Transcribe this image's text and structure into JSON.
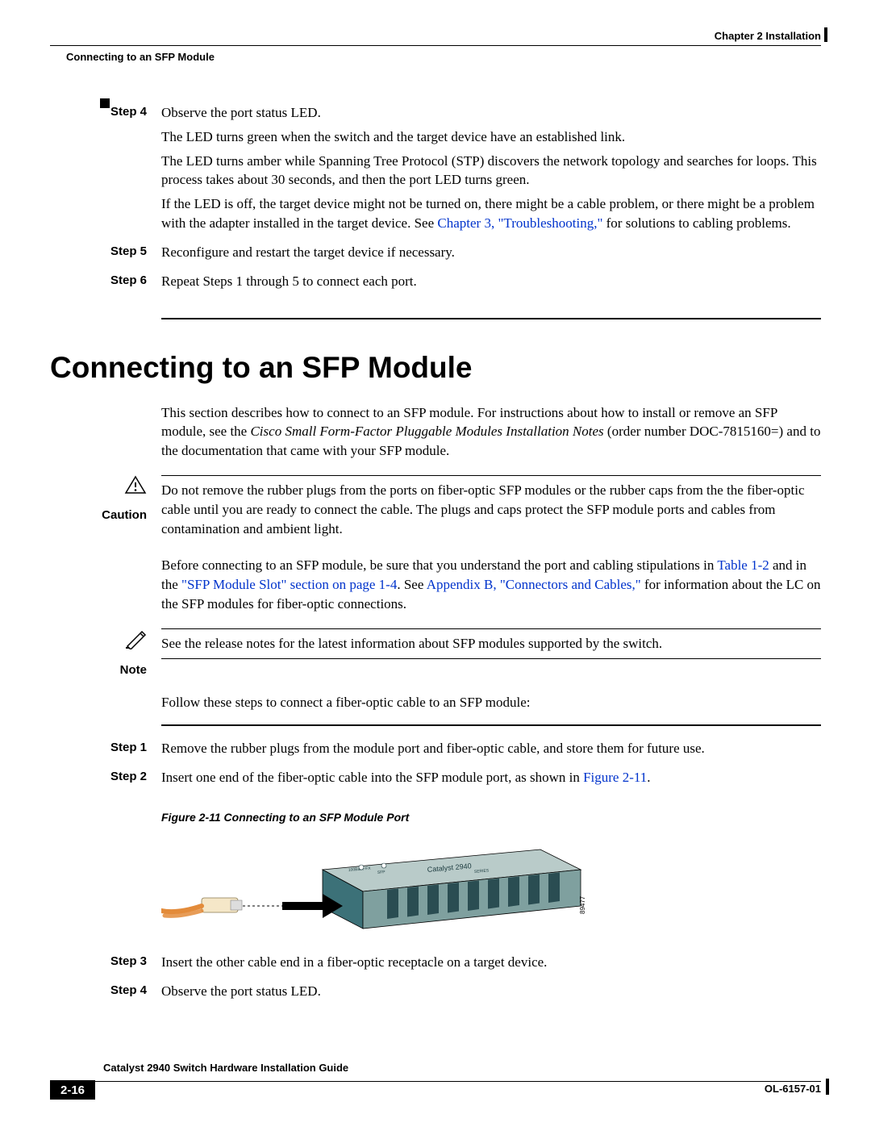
{
  "header": {
    "chapter": "Chapter 2      Installation",
    "breadcrumb": "Connecting to an SFP Module"
  },
  "steps_a": [
    {
      "label": "Step 4",
      "paras": [
        {
          "segments": [
            {
              "text": "Observe the port status LED."
            }
          ]
        },
        {
          "segments": [
            {
              "text": "The LED turns green when the switch and the target device have an established link."
            }
          ]
        },
        {
          "segments": [
            {
              "text": "The LED turns amber while Spanning Tree Protocol (STP) discovers the network topology and searches for loops. This process takes about 30 seconds, and then the port LED turns green."
            }
          ]
        },
        {
          "segments": [
            {
              "text": "If the LED is off, the target device might not be turned on, there might be a cable problem, or there might be a problem with the adapter installed in the target device. See "
            },
            {
              "text": "Chapter 3, \"Troubleshooting,\"",
              "link": true
            },
            {
              "text": " for solutions to cabling problems."
            }
          ]
        }
      ]
    },
    {
      "label": "Step 5",
      "paras": [
        {
          "segments": [
            {
              "text": "Reconfigure and restart the target device if necessary."
            }
          ]
        }
      ]
    },
    {
      "label": "Step 6",
      "paras": [
        {
          "segments": [
            {
              "text": "Repeat Steps 1 through 5 to connect each port."
            }
          ]
        }
      ]
    }
  ],
  "section_title": "Connecting to an SFP Module",
  "intro_para": {
    "segments": [
      {
        "text": "This section describes how to connect to an SFP module. For instructions about how to install or remove an SFP module, see the "
      },
      {
        "text": "Cisco Small Form-Factor Pluggable Modules Installation Notes",
        "italic": true
      },
      {
        "text": " (order number DOC-7815160=) and to the documentation that came with your SFP module."
      }
    ]
  },
  "caution": {
    "label": "Caution",
    "text": "Do not remove the rubber plugs from the ports on fiber-optic SFP modules or the rubber caps from the the fiber-optic cable until you are ready to connect the cable. The plugs and caps protect the SFP module ports and cables from contamination and ambient light."
  },
  "mid_para": {
    "segments": [
      {
        "text": "Before connecting to an SFP module, be sure that you understand the port and cabling stipulations in "
      },
      {
        "text": "Table 1-2",
        "link": true
      },
      {
        "text": " and in the "
      },
      {
        "text": "\"SFP Module Slot\" section on page 1-4",
        "link": true
      },
      {
        "text": ". See "
      },
      {
        "text": "Appendix B, \"Connectors and Cables,\"",
        "link": true
      },
      {
        "text": " for information about the LC on the SFP modules for fiber-optic connections."
      }
    ]
  },
  "note": {
    "label": "Note",
    "text": "See the release notes for the latest information about SFP modules supported by the switch."
  },
  "follow_para": "Follow these steps to connect a fiber-optic cable to an SFP module:",
  "steps_b": [
    {
      "label": "Step 1",
      "paras": [
        {
          "segments": [
            {
              "text": "Remove the rubber plugs from the module port and fiber-optic cable, and store them for future use."
            }
          ]
        }
      ]
    },
    {
      "label": "Step 2",
      "paras": [
        {
          "segments": [
            {
              "text": "Insert one end of the fiber-optic cable into the SFP module port, as shown in "
            },
            {
              "text": "Figure 2-11",
              "link": true
            },
            {
              "text": "."
            }
          ]
        }
      ]
    }
  ],
  "figure_caption": "Figure 2-11   Connecting to an SFP Module Port",
  "figure": {
    "device_label": "Catalyst 2940",
    "device_sub": "SERIES",
    "port_label_left": "100Base-FX",
    "port_label_right": "SFP",
    "id": "89477",
    "colors": {
      "body_top": "#b9cbc9",
      "body_front": "#3c7178",
      "body_dark": "#2a4d52",
      "trim": "#7fa09f",
      "cable": "#e38b3a",
      "connector": "#f5e7c8",
      "arrow": "#000000"
    }
  },
  "steps_c": [
    {
      "label": "Step 3",
      "paras": [
        {
          "segments": [
            {
              "text": "Insert the other cable end in a fiber-optic receptacle on a target device."
            }
          ]
        }
      ]
    },
    {
      "label": "Step 4",
      "paras": [
        {
          "segments": [
            {
              "text": "Observe the port status LED."
            }
          ]
        }
      ]
    }
  ],
  "footer": {
    "title": "Catalyst 2940 Switch Hardware Installation Guide",
    "page": "2-16",
    "doc": "OL-6157-01"
  }
}
